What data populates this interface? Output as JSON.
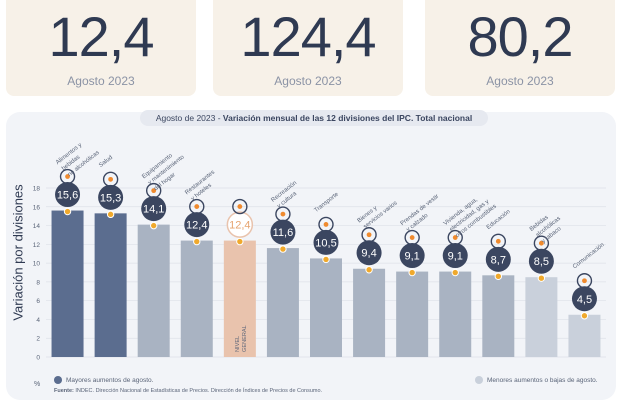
{
  "kpis": [
    {
      "value": "12,4",
      "label": "Agosto 2023"
    },
    {
      "value": "124,4",
      "label": "Agosto 2023"
    },
    {
      "value": "80,2",
      "label": "Agosto 2023"
    }
  ],
  "chart_title_date": "Agosto de 2023 - ",
  "chart_title_main": "Variación mensual de las 12 divisiones del IPC. Total nacional",
  "legend_major": "Mayores aumentos de agosto.",
  "legend_minor": "Menores aumentos o bajas de agosto.",
  "source_label": "Fuente:",
  "source_text": " INDEC. Dirección Nacional de Estadísticas de Precios. Dirección de Índices de Precios de Consumo.",
  "colors": {
    "major": "#5b6d8f",
    "minor": "#a9b3c2",
    "general": "#e9c3ad",
    "lightest": "#c9d0db",
    "badge": "#3b4660",
    "marker": "#f0a92c"
  },
  "chart_data": {
    "type": "bar",
    "ylabel": "Variación por divisiones",
    "unit_label": "%",
    "ylim": [
      0,
      18
    ],
    "yticks": [
      0,
      2,
      4,
      6,
      8,
      10,
      12,
      14,
      16,
      18
    ],
    "grid": true,
    "categories": [
      "Alimentos y bebidas no alcohólicas",
      "Salud",
      "Equipamiento y mantenimiento del hogar",
      "Restaurantes y hoteles",
      "NIVEL GENERAL",
      "Recreación y cultura",
      "Transporte",
      "Bienes y servicios varios",
      "Prendas de vestir y calzado",
      "Vivienda, agua, electricidad, gas y otros combustibles",
      "Educación",
      "Bebidas alcohólicas y tabaco",
      "Comunicación"
    ],
    "values": [
      15.6,
      15.3,
      14.1,
      12.4,
      12.4,
      11.6,
      10.5,
      9.4,
      9.1,
      9.1,
      8.7,
      8.5,
      4.5
    ],
    "value_labels": [
      "15,6",
      "15,3",
      "14,1",
      "12,4",
      "12,4",
      "11,6",
      "10,5",
      "9,4",
      "9,1",
      "9,1",
      "8,7",
      "8,5",
      "4,5"
    ],
    "groups": [
      "major",
      "major",
      "minor",
      "minor",
      "general",
      "minor",
      "minor",
      "minor",
      "minor",
      "minor",
      "minor",
      "lightest",
      "lightest"
    ],
    "label_lines": [
      [
        "Alimentos y",
        "bebidas",
        "no alcohólicas"
      ],
      [
        "Salud"
      ],
      [
        "Equipamiento",
        "y mantenimiento",
        "del hogar"
      ],
      [
        "Restaurantes",
        "y hoteles"
      ],
      [
        "NIVEL",
        "GENERAL"
      ],
      [
        "Recreación",
        "y cultura"
      ],
      [
        "Transporte"
      ],
      [
        "Bienes y",
        "servicios varios"
      ],
      [
        "Prendas de vestir",
        "y calzado"
      ],
      [
        "Vivienda, agua,",
        "electricidad, gas y",
        "otros combustibles"
      ],
      [
        "Educación"
      ],
      [
        "Bebidas",
        "alcohólicas",
        "y tabaco"
      ],
      [
        "Comunicación"
      ]
    ],
    "icons": [
      "food-icon",
      "health-icon",
      "home-appliance-icon",
      "restaurant-icon",
      "shopping-basket-icon",
      "recreation-icon",
      "transport-icon",
      "services-icon",
      "clothing-icon",
      "housing-icon",
      "education-icon",
      "beverages-icon",
      "communication-icon"
    ],
    "legend_position": "bottom"
  }
}
